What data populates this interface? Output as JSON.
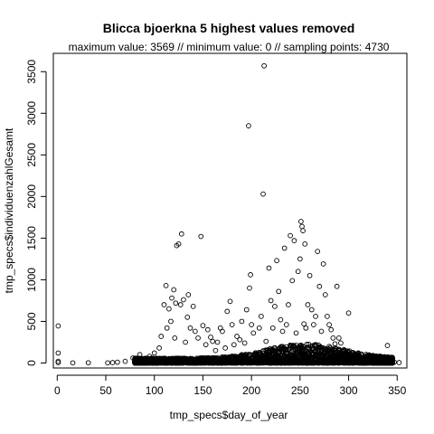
{
  "chart_data": {
    "type": "scatter",
    "title": "Blicca bjoerkna  5 highest values removed",
    "subtitle": "maximum value: 3569  //  minimum value: 0  // sampling points: 4730",
    "xlabel": "tmp_specs$day_of_year",
    "ylabel": "tmp_specs$individuenzahlGesamt",
    "xlim": [
      -4,
      360
    ],
    "ylim": [
      -60,
      3720
    ],
    "x_ticks": [
      0,
      50,
      100,
      150,
      200,
      250,
      300,
      350
    ],
    "y_ticks": [
      0,
      500,
      1000,
      1500,
      2000,
      2500,
      3000,
      3500
    ],
    "marker": "open-circle",
    "marker_color": "#000000",
    "grid": false,
    "points": [
      [
        1,
        445
      ],
      [
        1,
        120
      ],
      [
        1,
        20
      ],
      [
        1,
        5
      ],
      [
        16,
        2
      ],
      [
        32,
        3
      ],
      [
        52,
        2
      ],
      [
        57,
        5
      ],
      [
        62,
        10
      ],
      [
        70,
        20
      ],
      [
        78,
        60
      ],
      [
        85,
        100
      ],
      [
        90,
        45
      ],
      [
        95,
        80
      ],
      [
        100,
        120
      ],
      [
        105,
        180
      ],
      [
        107,
        320
      ],
      [
        110,
        700
      ],
      [
        112,
        930
      ],
      [
        113,
        420
      ],
      [
        115,
        650
      ],
      [
        117,
        500
      ],
      [
        118,
        780
      ],
      [
        120,
        880
      ],
      [
        121,
        300
      ],
      [
        122,
        720
      ],
      [
        123,
        1410
      ],
      [
        125,
        1430
      ],
      [
        127,
        700
      ],
      [
        128,
        1550
      ],
      [
        130,
        760
      ],
      [
        132,
        250
      ],
      [
        134,
        550
      ],
      [
        135,
        820
      ],
      [
        137,
        420
      ],
      [
        140,
        680
      ],
      [
        142,
        380
      ],
      [
        145,
        300
      ],
      [
        148,
        1520
      ],
      [
        150,
        450
      ],
      [
        153,
        220
      ],
      [
        155,
        400
      ],
      [
        158,
        310
      ],
      [
        160,
        260
      ],
      [
        163,
        150
      ],
      [
        165,
        250
      ],
      [
        168,
        420
      ],
      [
        170,
        380
      ],
      [
        173,
        180
      ],
      [
        175,
        620
      ],
      [
        178,
        740
      ],
      [
        180,
        460
      ],
      [
        182,
        220
      ],
      [
        185,
        320
      ],
      [
        188,
        280
      ],
      [
        190,
        500
      ],
      [
        193,
        240
      ],
      [
        195,
        640
      ],
      [
        197,
        2850
      ],
      [
        198,
        900
      ],
      [
        199,
        1060
      ],
      [
        200,
        460
      ],
      [
        202,
        360
      ],
      [
        205,
        120
      ],
      [
        208,
        420
      ],
      [
        210,
        560
      ],
      [
        212,
        2030
      ],
      [
        213,
        3570
      ],
      [
        215,
        260
      ],
      [
        218,
        1140
      ],
      [
        220,
        750
      ],
      [
        222,
        420
      ],
      [
        224,
        680
      ],
      [
        226,
        1230
      ],
      [
        228,
        860
      ],
      [
        230,
        520
      ],
      [
        232,
        380
      ],
      [
        234,
        1380
      ],
      [
        236,
        460
      ],
      [
        238,
        700
      ],
      [
        240,
        1530
      ],
      [
        242,
        990
      ],
      [
        244,
        1470
      ],
      [
        246,
        360
      ],
      [
        248,
        1100
      ],
      [
        250,
        1250
      ],
      [
        251,
        1700
      ],
      [
        252,
        1640
      ],
      [
        253,
        1590
      ],
      [
        254,
        470
      ],
      [
        255,
        1430
      ],
      [
        256,
        420
      ],
      [
        258,
        700
      ],
      [
        260,
        1050
      ],
      [
        262,
        640
      ],
      [
        264,
        460
      ],
      [
        266,
        560
      ],
      [
        268,
        1340
      ],
      [
        270,
        920
      ],
      [
        272,
        380
      ],
      [
        274,
        1190
      ],
      [
        276,
        820
      ],
      [
        278,
        560
      ],
      [
        280,
        460
      ],
      [
        282,
        400
      ],
      [
        284,
        300
      ],
      [
        286,
        230
      ],
      [
        288,
        920
      ],
      [
        290,
        300
      ],
      [
        292,
        240
      ],
      [
        295,
        160
      ],
      [
        298,
        120
      ],
      [
        300,
        600
      ],
      [
        303,
        80
      ],
      [
        306,
        60
      ],
      [
        310,
        40
      ],
      [
        315,
        30
      ],
      [
        320,
        20
      ],
      [
        325,
        15
      ],
      [
        330,
        10
      ],
      [
        335,
        8
      ],
      [
        340,
        210
      ],
      [
        343,
        40
      ],
      [
        347,
        10
      ],
      [
        352,
        5
      ]
    ],
    "dense_band": {
      "description_free": true,
      "x_range": [
        80,
        345
      ],
      "y_range": [
        0,
        230
      ],
      "count": 3400
    }
  }
}
